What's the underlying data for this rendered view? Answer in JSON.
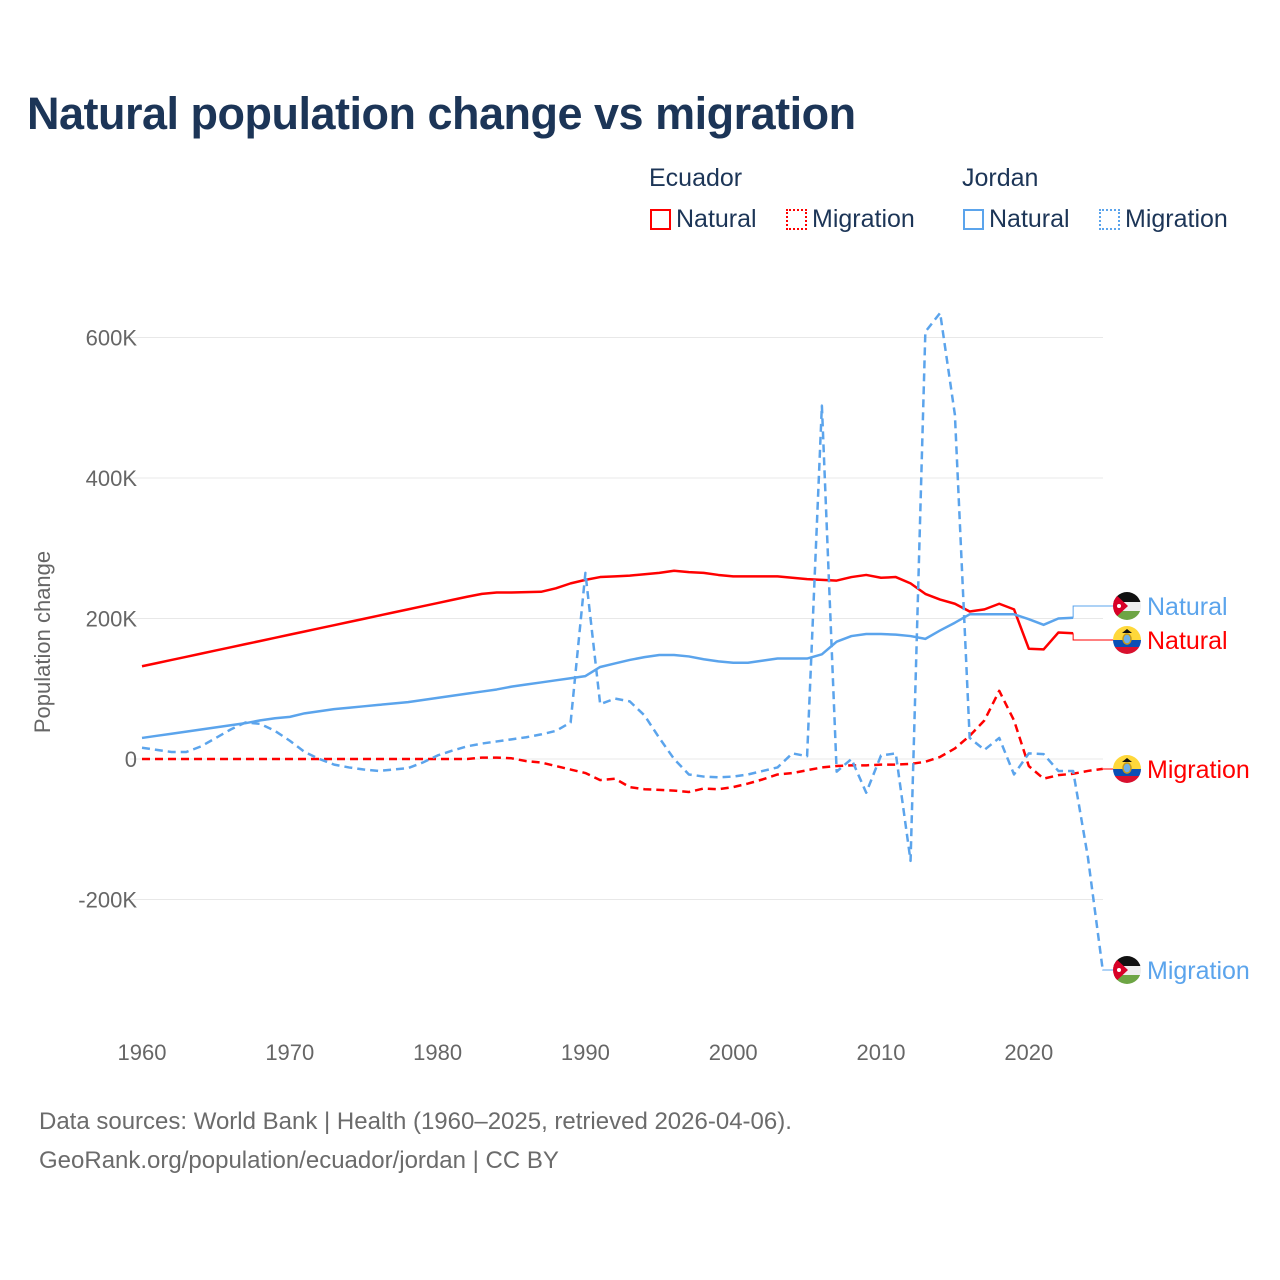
{
  "chart_data": {
    "type": "line",
    "title": "Natural population change vs migration",
    "ylabel": "Population change",
    "xlabel": "",
    "ylim": [
      -300000,
      650000
    ],
    "xlim": [
      1960,
      2025
    ],
    "x_ticks": [
      "1960",
      "1970",
      "1980",
      "1990",
      "2000",
      "2010",
      "2020"
    ],
    "y_ticks": [
      {
        "value": 600000,
        "label": "600K"
      },
      {
        "value": 400000,
        "label": "400K"
      },
      {
        "value": 200000,
        "label": "200K"
      },
      {
        "value": 0,
        "label": "0"
      },
      {
        "value": -200000,
        "label": "-200K"
      }
    ],
    "legend": {
      "placement": "top-right",
      "groups": [
        {
          "country": "Ecuador",
          "items": [
            "Natural",
            "Migration"
          ]
        },
        {
          "country": "Jordan",
          "items": [
            "Natural",
            "Migration"
          ]
        }
      ]
    },
    "start_year": 1960,
    "series": [
      {
        "name": "Ecuador Natural",
        "country": "Ecuador",
        "kind": "Natural",
        "color": "#ff0000",
        "dash": false,
        "end_label": "Natural",
        "flag": "ecuador",
        "values": [
          132000,
          136500,
          141000,
          145500,
          150000,
          154500,
          159000,
          163500,
          168000,
          172500,
          177000,
          181500,
          186000,
          190500,
          195000,
          199500,
          204000,
          208500,
          213000,
          217500,
          222000,
          226500,
          231000,
          235000,
          237000,
          237000,
          237500,
          238000,
          243000,
          250000,
          255000,
          259000,
          260000,
          261000,
          263000,
          265000,
          268000,
          266000,
          265000,
          262000,
          260000,
          260000,
          260000,
          260000,
          258000,
          256000,
          255000,
          254000,
          259000,
          262000,
          258000,
          259000,
          250000,
          235000,
          227000,
          221000,
          210000,
          213000,
          221000,
          213000,
          157000,
          156000,
          180000,
          179000,
          null,
          null
        ]
      },
      {
        "name": "Ecuador Migration",
        "country": "Ecuador",
        "kind": "Migration",
        "color": "#ff0000",
        "dash": true,
        "end_label": "Migration",
        "flag": "ecuador",
        "values": [
          0,
          0,
          0,
          0,
          0,
          0,
          0,
          0,
          0,
          0,
          0,
          0,
          0,
          0,
          0,
          0,
          0,
          0,
          0,
          0,
          0,
          0,
          0,
          2000,
          2000,
          1000,
          -3000,
          -5000,
          -10000,
          -15000,
          -20000,
          -30000,
          -28000,
          -40000,
          -43000,
          -44000,
          -45000,
          -47000,
          -42000,
          -43000,
          -40000,
          -35000,
          -29000,
          -22000,
          -20000,
          -16000,
          -12000,
          -10000,
          -9000,
          -9000,
          -8000,
          -8000,
          -7000,
          -4000,
          3000,
          15000,
          33000,
          55000,
          97000,
          55000,
          -10000,
          -28000,
          -23000,
          -21000,
          -17000,
          -14000
        ]
      },
      {
        "name": "Jordan Natural",
        "country": "Jordan",
        "kind": "Natural",
        "color": "#5ba4ec",
        "dash": false,
        "end_label": "Natural",
        "flag": "jordan",
        "values": [
          30000,
          33000,
          36000,
          39000,
          42000,
          45000,
          48000,
          51000,
          55000,
          58000,
          60000,
          65000,
          68000,
          71000,
          73000,
          75000,
          77000,
          79000,
          81000,
          84000,
          87000,
          90000,
          93000,
          96000,
          99000,
          103000,
          106000,
          109000,
          112000,
          115000,
          118000,
          131000,
          136000,
          141000,
          145000,
          148000,
          148000,
          146000,
          142000,
          139000,
          137000,
          137000,
          140000,
          143000,
          143000,
          143000,
          149000,
          167000,
          175000,
          178000,
          178000,
          177000,
          175000,
          171000,
          183000,
          194000,
          206000,
          206000,
          206000,
          206000,
          199000,
          191000,
          200000,
          201000,
          null,
          null
        ]
      },
      {
        "name": "Jordan Migration",
        "country": "Jordan",
        "kind": "Migration",
        "color": "#5ba4ec",
        "dash": true,
        "end_label": "Migration",
        "flag": "jordan",
        "values": [
          16000,
          13000,
          10000,
          10000,
          18000,
          30000,
          42000,
          52000,
          50000,
          40000,
          26000,
          10000,
          0,
          -8000,
          -12000,
          -15000,
          -17000,
          -15000,
          -13000,
          -5000,
          5000,
          12000,
          18000,
          22000,
          25000,
          28000,
          31000,
          35000,
          40000,
          52000,
          265000,
          78000,
          86000,
          82000,
          62000,
          30000,
          0,
          -22000,
          -25000,
          -26000,
          -25000,
          -22000,
          -17000,
          -12000,
          8000,
          4000,
          503000,
          -18000,
          0,
          -48000,
          5000,
          8000,
          -145000,
          608000,
          635000,
          490000,
          30000,
          13000,
          30000,
          -22000,
          8000,
          7000,
          -17000,
          -17000,
          -140000,
          -300000
        ]
      }
    ]
  },
  "legend_labels": {
    "ecuador": "Ecuador",
    "jordan": "Jordan",
    "natural": "Natural",
    "migration": "Migration"
  },
  "footer": {
    "line1": "Data sources: World Bank | Health (1960–2025, retrieved 2026-04-06).",
    "line2": "GeoRank.org/population/ecuador/jordan | CC BY"
  }
}
